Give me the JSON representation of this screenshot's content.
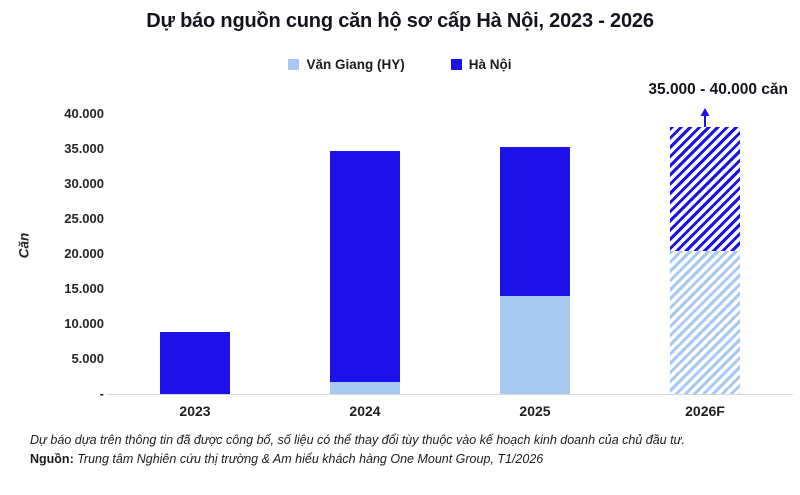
{
  "title": "Dự báo nguồn cung căn hộ sơ cấp Hà Nội, 2023 - 2026",
  "legend": [
    {
      "label": "Văn Giang (HY)",
      "color": "#A7C8F1"
    },
    {
      "label": "Hà Nội",
      "color": "#1C12E8"
    }
  ],
  "annotation": {
    "range_label": "35.000 - 40.000 căn"
  },
  "y_axis": {
    "title": "Căn",
    "ticks": [
      "40.000",
      "35.000",
      "30.000",
      "25.000",
      "20.000",
      "15.000",
      "10.000",
      "5.000",
      "-"
    ]
  },
  "footnote": "Dự báo dựa trên thông tin đã được công bố, số liệu có thể thay đổi tùy thuộc vào kế hoạch kinh doanh của chủ đầu tư.",
  "source": {
    "label": "Nguồn:",
    "text": "Trung tâm Nghiên cứu thị trường & Am hiểu khách hàng One Mount Group, T1/2026"
  },
  "chart_data": {
    "type": "bar",
    "stacked": true,
    "title": "Dự báo nguồn cung căn hộ sơ cấp Hà Nội, 2023 - 2026",
    "categories": [
      "2023",
      "2024",
      "2025",
      "2026F"
    ],
    "series": [
      {
        "name": "Văn Giang (HY)",
        "color": "#A7C8F1",
        "values": [
          0,
          1700,
          14000,
          20400
        ]
      },
      {
        "name": "Hà Nội",
        "color": "#1C12E8",
        "values": [
          8900,
          33000,
          21300,
          17700
        ]
      }
    ],
    "totals": [
      8900,
      34700,
      35300,
      38100
    ],
    "forecast_categories": [
      "2026F"
    ],
    "forecast_range": [
      35000,
      40000
    ],
    "forecast_range_label": "35.000 - 40.000 căn",
    "xlabel": "",
    "ylabel": "Căn",
    "ylim": [
      0,
      40000
    ],
    "ytick_step": 5000,
    "grid": false,
    "legend_position": "top",
    "accent_dark_blue": "#1C12E8",
    "accent_light_blue": "#A7C8F1",
    "baseline_color": "#d6d6d6"
  }
}
